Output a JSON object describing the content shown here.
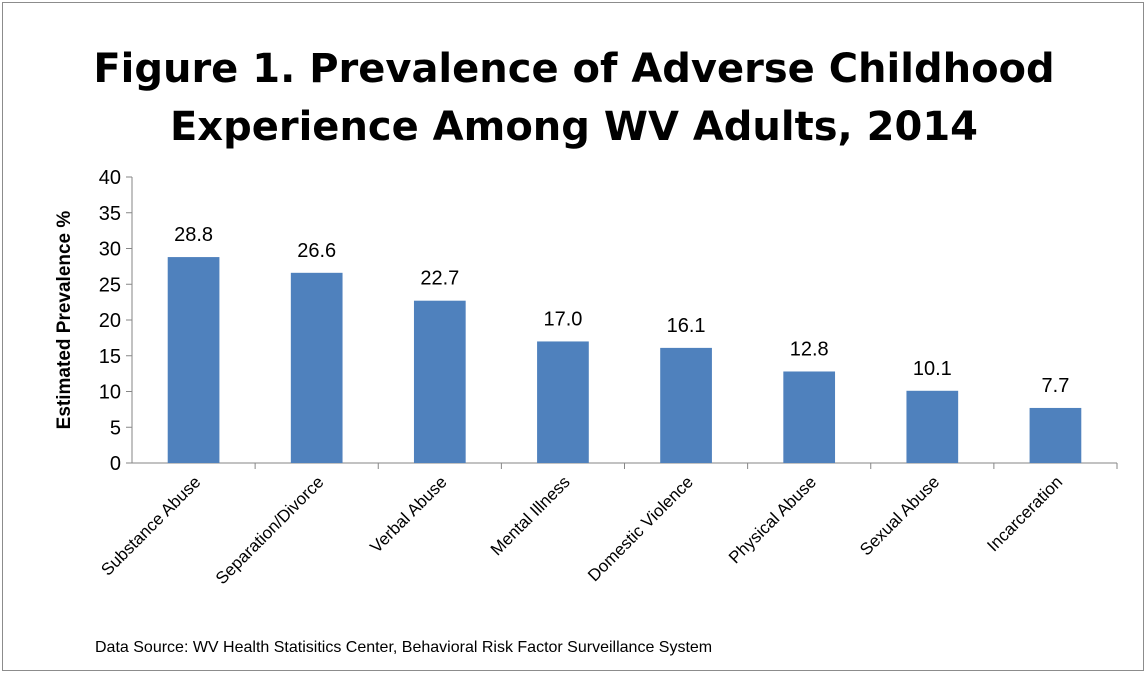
{
  "chart_data": {
    "type": "bar",
    "title_lines": [
      "Figure 1.  Prevalence of Adverse Childhood",
      "Experience Among WV Adults, 2014"
    ],
    "ylabel": "Estimated Prevalence %",
    "xlabel": "",
    "ylim": [
      0,
      40
    ],
    "yticks": [
      0,
      5,
      10,
      15,
      20,
      25,
      30,
      35,
      40
    ],
    "categories": [
      "Substance Abuse",
      "Separation/Divorce",
      "Verbal Abuse",
      "Mental Illness",
      "Domestic Violence",
      "Physical Abuse",
      "Sexual Abuse",
      "Incarceration"
    ],
    "values": [
      28.8,
      26.6,
      22.7,
      17.0,
      16.1,
      12.8,
      10.1,
      7.7
    ],
    "data_labels": [
      "28.8",
      "26.6",
      "22.7",
      "17.0",
      "16.1",
      "12.8",
      "10.1",
      "7.7"
    ],
    "bar_color": "#4f81bd",
    "grid": false,
    "legend": "none"
  },
  "source_text": "Data Source:  WV Health Statisitics Center, Behavioral Risk Factor Surveillance System"
}
